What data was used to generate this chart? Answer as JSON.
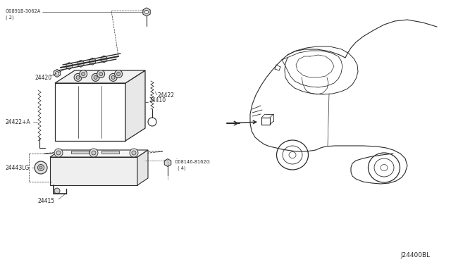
{
  "bg_color": "#ffffff",
  "line_color": "#2a2a2a",
  "diagram_code": "J24400BL",
  "parts": {
    "battery_main": "24410",
    "battery_clamp": "24420",
    "battery_cable_right": "24422",
    "battery_cable_left": "24422+A",
    "battery_tray": "24415",
    "battery_stay": "24443LG",
    "bolt1_line1": "Ô0891B-3062A",
    "bolt1_line2": "( 2)",
    "bolt2_line1": "Ô08146-8162G",
    "bolt2_line2": "( 4)"
  }
}
